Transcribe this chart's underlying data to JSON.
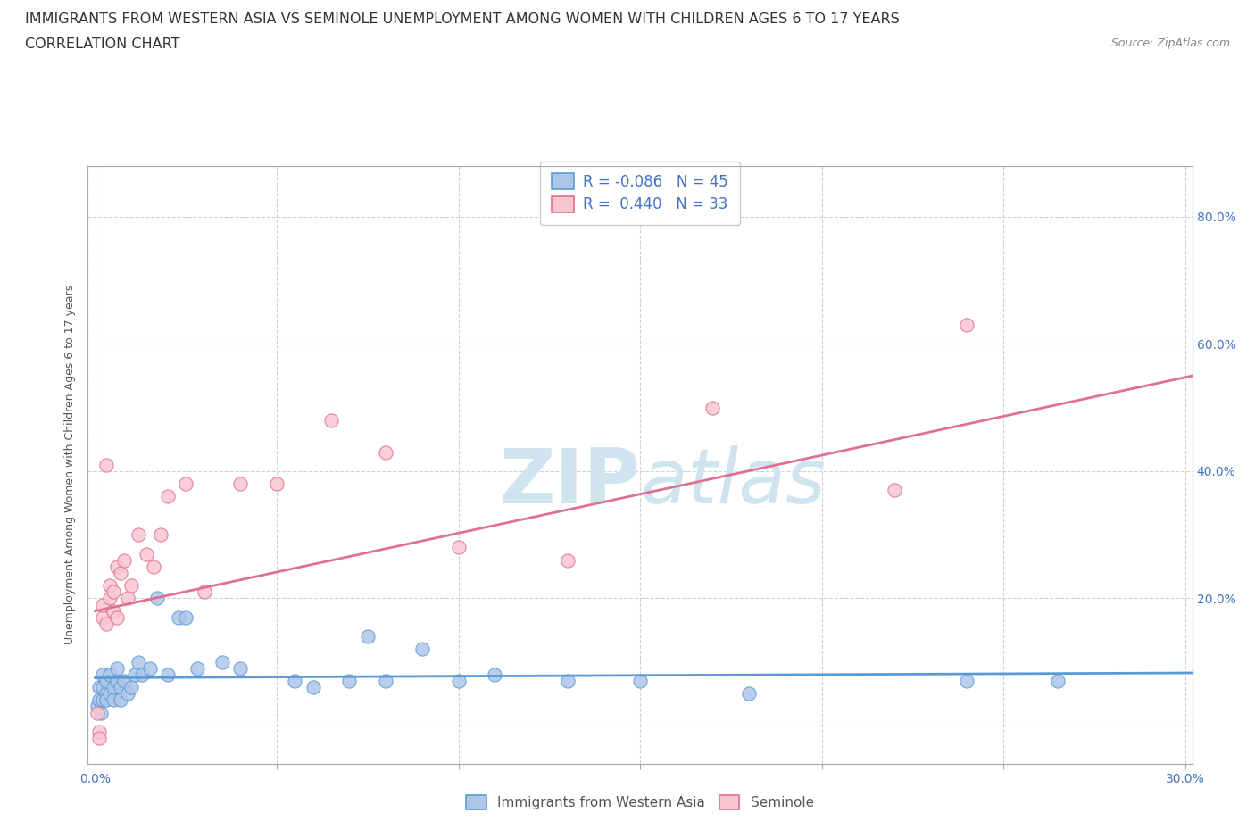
{
  "title_line1": "IMMIGRANTS FROM WESTERN ASIA VS SEMINOLE UNEMPLOYMENT AMONG WOMEN WITH CHILDREN AGES 6 TO 17 YEARS",
  "title_line2": "CORRELATION CHART",
  "source_text": "Source: ZipAtlas.com",
  "ylabel": "Unemployment Among Women with Children Ages 6 to 17 years",
  "xlim": [
    -0.002,
    0.302
  ],
  "ylim": [
    -0.06,
    0.88
  ],
  "x_ticks": [
    0.0,
    0.05,
    0.1,
    0.15,
    0.2,
    0.25,
    0.3
  ],
  "x_tick_labels": [
    "0.0%",
    "",
    "",
    "",
    "",
    "",
    "30.0%"
  ],
  "y_ticks": [
    0.0,
    0.2,
    0.4,
    0.6,
    0.8
  ],
  "y_tick_labels": [
    "",
    "20.0%",
    "40.0%",
    "60.0%",
    "80.0%"
  ],
  "blue_color": "#aec6e8",
  "blue_edge": "#5b9bd5",
  "pink_color": "#f9c6d0",
  "pink_edge": "#e07090",
  "blue_line_color": "#5b9bd5",
  "pink_line_color": "#e07090",
  "legend_text_color": "#4472c4",
  "watermark_color": "#d0e4f0",
  "R_blue": -0.086,
  "N_blue": 45,
  "R_pink": 0.44,
  "N_pink": 33,
  "blue_scatter_x": [
    0.0005,
    0.001,
    0.001,
    0.0015,
    0.002,
    0.002,
    0.002,
    0.003,
    0.003,
    0.003,
    0.004,
    0.004,
    0.005,
    0.005,
    0.006,
    0.006,
    0.007,
    0.007,
    0.008,
    0.009,
    0.01,
    0.011,
    0.012,
    0.013,
    0.015,
    0.017,
    0.02,
    0.023,
    0.025,
    0.028,
    0.035,
    0.04,
    0.055,
    0.06,
    0.07,
    0.075,
    0.08,
    0.09,
    0.1,
    0.11,
    0.13,
    0.15,
    0.18,
    0.24,
    0.265
  ],
  "blue_scatter_y": [
    0.03,
    0.04,
    0.06,
    0.02,
    0.04,
    0.06,
    0.08,
    0.05,
    0.07,
    0.04,
    0.05,
    0.08,
    0.04,
    0.06,
    0.07,
    0.09,
    0.06,
    0.04,
    0.07,
    0.05,
    0.06,
    0.08,
    0.1,
    0.08,
    0.09,
    0.2,
    0.08,
    0.17,
    0.17,
    0.09,
    0.1,
    0.09,
    0.07,
    0.06,
    0.07,
    0.14,
    0.07,
    0.12,
    0.07,
    0.08,
    0.07,
    0.07,
    0.05,
    0.07,
    0.07
  ],
  "pink_scatter_x": [
    0.0005,
    0.001,
    0.001,
    0.002,
    0.002,
    0.003,
    0.003,
    0.004,
    0.004,
    0.005,
    0.005,
    0.006,
    0.006,
    0.007,
    0.008,
    0.009,
    0.01,
    0.012,
    0.014,
    0.016,
    0.018,
    0.02,
    0.025,
    0.03,
    0.04,
    0.05,
    0.065,
    0.08,
    0.1,
    0.13,
    0.17,
    0.22,
    0.24
  ],
  "pink_scatter_y": [
    0.02,
    -0.01,
    -0.02,
    0.17,
    0.19,
    0.41,
    0.16,
    0.2,
    0.22,
    0.18,
    0.21,
    0.17,
    0.25,
    0.24,
    0.26,
    0.2,
    0.22,
    0.3,
    0.27,
    0.25,
    0.3,
    0.36,
    0.38,
    0.21,
    0.38,
    0.38,
    0.48,
    0.43,
    0.28,
    0.26,
    0.5,
    0.37,
    0.63
  ],
  "grid_color": "#cccccc",
  "background_color": "#ffffff",
  "title_fontsize": 11.5,
  "subtitle_fontsize": 11.5,
  "axis_label_fontsize": 9,
  "tick_fontsize": 10
}
